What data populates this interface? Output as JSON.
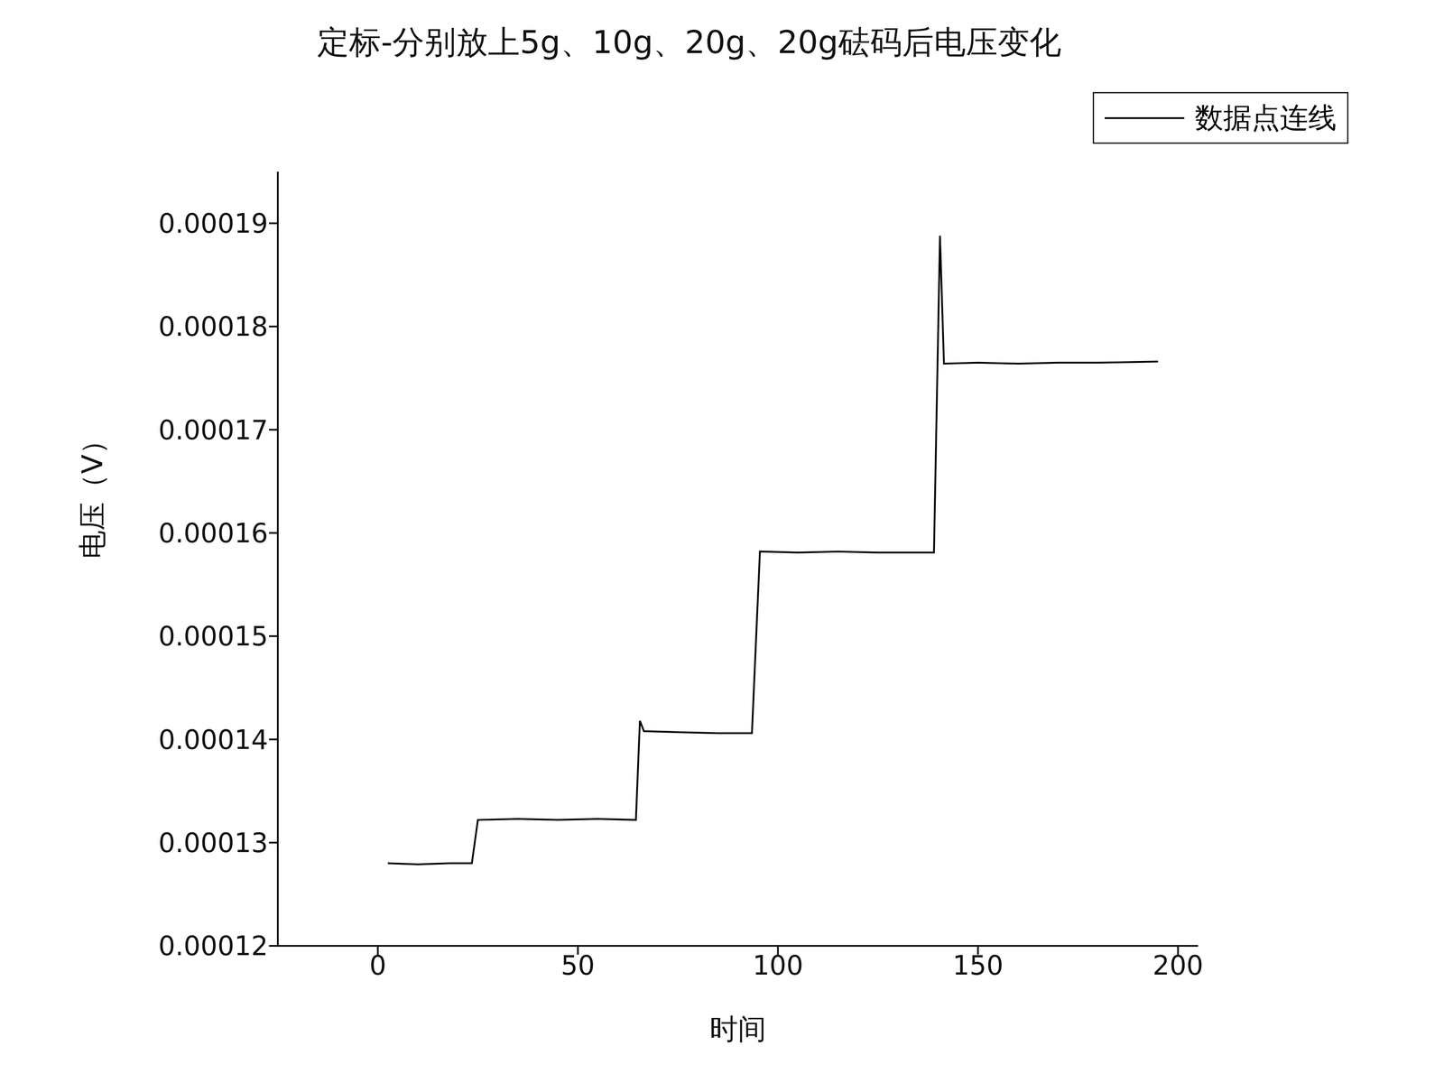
{
  "chart_data": {
    "type": "line",
    "title": "定标-分别放上5g、10g、20g、20g砝码后电压变化",
    "x_label": "时间",
    "y_label": "电压（V）",
    "x": [
      2.5,
      10,
      18,
      23.5,
      25,
      35,
      45,
      55,
      64.5,
      65.5,
      66.5,
      75,
      85,
      93.5,
      95.5,
      105,
      115,
      125,
      139,
      140.5,
      141.5,
      150,
      160,
      170,
      180,
      195
    ],
    "series": [
      {
        "name": "数据点连线",
        "color": "#000000",
        "values": [
          0.000128,
          0.0001279,
          0.000128,
          0.000128,
          0.0001322,
          0.0001323,
          0.0001322,
          0.0001323,
          0.0001322,
          0.0001418,
          0.0001408,
          0.0001407,
          0.0001406,
          0.0001406,
          0.0001582,
          0.0001581,
          0.0001582,
          0.0001581,
          0.0001581,
          0.0001888,
          0.0001764,
          0.0001765,
          0.0001764,
          0.0001765,
          0.0001765,
          0.0001766
        ]
      }
    ],
    "xlim": [
      -25,
      205
    ],
    "xticks": [
      0,
      50,
      100,
      150,
      200
    ],
    "ylim": [
      0.00012,
      0.000195
    ],
    "yticks": [
      0.00012,
      0.00013,
      0.00014,
      0.00015,
      0.00016,
      0.00017,
      0.00018,
      0.00019
    ],
    "legend": "upper right",
    "grid": false
  }
}
